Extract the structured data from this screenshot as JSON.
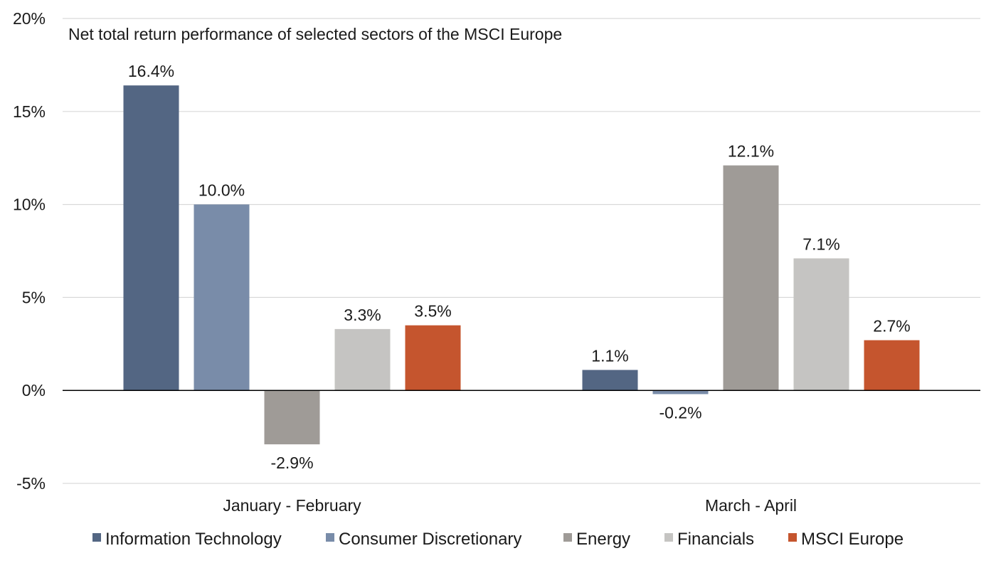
{
  "chart_data": {
    "type": "bar",
    "title": "Net total return performance of selected sectors of the MSCI Europe",
    "xlabel": "",
    "ylabel": "",
    "categories": [
      "January - February",
      "March - April"
    ],
    "series": [
      {
        "name": "Information Technology",
        "color": "#536683",
        "values": [
          16.4,
          1.1
        ],
        "labels": [
          "16.4%",
          "1.1%"
        ]
      },
      {
        "name": "Consumer Discretionary",
        "color": "#798ca9",
        "values": [
          10.0,
          -0.2
        ],
        "labels": [
          "10.0%",
          "-0.2%"
        ]
      },
      {
        "name": "Energy",
        "color": "#9f9b97",
        "values": [
          -2.9,
          12.1
        ],
        "labels": [
          "-2.9%",
          "12.1%"
        ]
      },
      {
        "name": "Financials",
        "color": "#c5c4c2",
        "values": [
          3.3,
          7.1
        ],
        "labels": [
          "3.3%",
          "7.1%"
        ]
      },
      {
        "name": "MSCI Europe",
        "color": "#c5552e",
        "values": [
          3.5,
          2.7
        ],
        "labels": [
          "3.5%",
          "2.7%"
        ]
      }
    ],
    "ylim": [
      -5,
      20
    ],
    "yticks": [
      -5,
      0,
      5,
      10,
      15,
      20
    ],
    "ytick_labels": [
      "-5%",
      "0%",
      "5%",
      "10%",
      "15%",
      "20%"
    ],
    "grid": true,
    "legend_position": "bottom"
  }
}
